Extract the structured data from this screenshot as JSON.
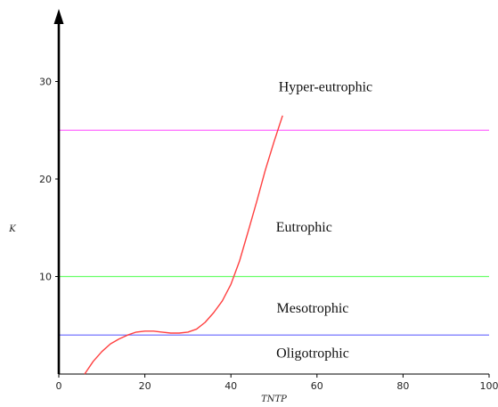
{
  "chart_data": {
    "type": "line",
    "title": "",
    "xlabel": "TNTP",
    "ylabel": "K",
    "xlim": [
      0,
      100
    ],
    "ylim": [
      0,
      38
    ],
    "x_ticks": [
      0,
      20,
      40,
      60,
      80,
      100
    ],
    "y_ticks": [
      10,
      20,
      30
    ],
    "grid": false,
    "legend": "none",
    "series": [
      {
        "color": "#ff4040",
        "x": [
          6,
          8,
          10,
          12,
          14,
          16,
          18,
          20,
          22,
          24,
          26,
          28,
          30,
          32,
          34,
          36,
          38,
          40,
          42,
          44,
          46,
          48,
          50,
          52
        ],
        "y": [
          0,
          1.3,
          2.3,
          3.1,
          3.6,
          4.0,
          4.3,
          4.4,
          4.4,
          4.3,
          4.2,
          4.2,
          4.3,
          4.6,
          5.3,
          6.3,
          7.5,
          9.2,
          11.6,
          14.6,
          17.7,
          20.9,
          23.8,
          26.5
        ]
      }
    ],
    "thresholds": [
      {
        "value": 25,
        "color": "#ff66ff"
      },
      {
        "value": 10,
        "color": "#66ff66"
      },
      {
        "value": 4,
        "color": "#6666ff"
      }
    ],
    "zones": [
      {
        "label": "Hyper-eutrophic",
        "x": 62,
        "y": 29
      },
      {
        "label": "Eutrophic",
        "x": 57,
        "y": 14.6
      },
      {
        "label": "Mesotrophic",
        "x": 59,
        "y": 6.3
      },
      {
        "label": "Oligotrophic",
        "x": 59,
        "y": 1.7
      }
    ]
  }
}
